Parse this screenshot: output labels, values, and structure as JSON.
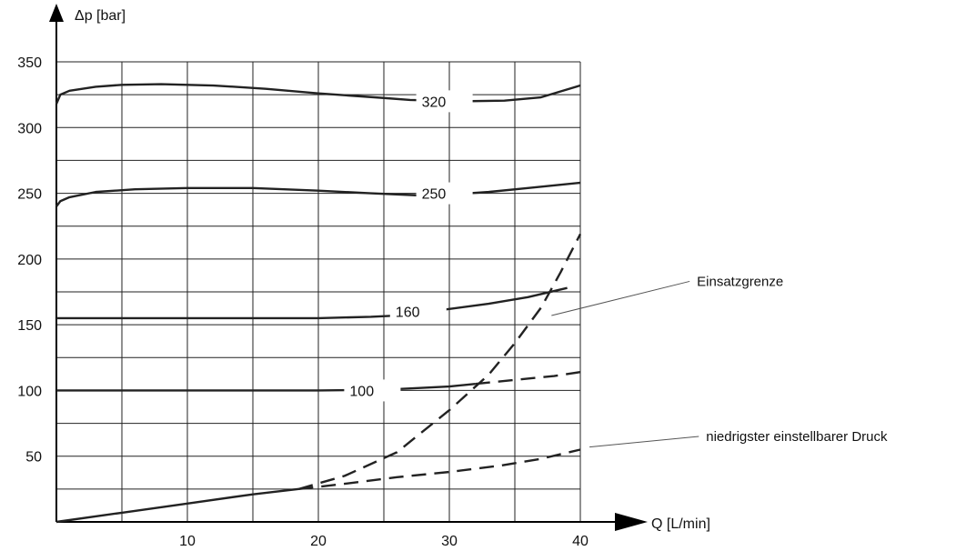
{
  "chart_data": {
    "type": "line",
    "title": "",
    "xlabel": "Q [L/min]",
    "ylabel": "Δp [bar]",
    "xlim": [
      0,
      40
    ],
    "ylim": [
      0,
      350
    ],
    "x_ticks": [
      10,
      20,
      30,
      40
    ],
    "y_ticks": [
      50,
      100,
      150,
      200,
      250,
      300,
      350
    ],
    "grid": true,
    "series": [
      {
        "name": "320",
        "style": "solid",
        "points": [
          [
            0,
            318
          ],
          [
            0.3,
            325
          ],
          [
            1,
            328
          ],
          [
            3,
            331
          ],
          [
            5,
            332.5
          ],
          [
            8,
            333
          ],
          [
            12,
            332
          ],
          [
            16,
            329.5
          ],
          [
            20,
            326
          ],
          [
            25,
            322.5
          ],
          [
            27,
            321
          ],
          [
            31,
            320
          ],
          [
            34.2,
            320.5
          ],
          [
            37,
            323
          ],
          [
            40,
            332
          ]
        ]
      },
      {
        "name": "250",
        "style": "solid",
        "points": [
          [
            0,
            240
          ],
          [
            0.3,
            244
          ],
          [
            1,
            247
          ],
          [
            3,
            251
          ],
          [
            6,
            253
          ],
          [
            10,
            254
          ],
          [
            15,
            254
          ],
          [
            20,
            252
          ],
          [
            24,
            250
          ],
          [
            27.5,
            248.5
          ],
          [
            30,
            249
          ],
          [
            33,
            251
          ],
          [
            36,
            254
          ],
          [
            40,
            258
          ]
        ]
      },
      {
        "name": "160",
        "style": "solid",
        "points": [
          [
            0,
            155
          ],
          [
            10,
            155
          ],
          [
            20,
            155
          ],
          [
            24,
            156
          ],
          [
            26,
            157
          ],
          [
            30,
            162
          ],
          [
            33,
            166
          ],
          [
            36,
            171
          ],
          [
            39,
            178
          ]
        ]
      },
      {
        "name": "100",
        "style": "solid",
        "points": [
          [
            0,
            100
          ],
          [
            10,
            100
          ],
          [
            20,
            100
          ],
          [
            24,
            100.5
          ],
          [
            26,
            101
          ],
          [
            30,
            103
          ],
          [
            32,
            105
          ]
        ]
      },
      {
        "name": "",
        "style": "dashed",
        "points": [
          [
            32,
            105
          ],
          [
            35,
            108
          ],
          [
            38,
            111
          ],
          [
            40,
            114
          ]
        ]
      },
      {
        "name": "",
        "style": "solid",
        "points": [
          [
            0,
            0
          ],
          [
            5,
            7
          ],
          [
            10,
            14
          ],
          [
            15,
            21
          ],
          [
            18.5,
            25
          ]
        ]
      },
      {
        "name": "",
        "style": "dashed",
        "points": [
          [
            18.5,
            25
          ],
          [
            22,
            29
          ],
          [
            26,
            34
          ],
          [
            30,
            38
          ],
          [
            34,
            43
          ],
          [
            37,
            48
          ],
          [
            40,
            55
          ]
        ]
      },
      {
        "name": "",
        "style": "dashed",
        "points": [
          [
            18.5,
            25
          ],
          [
            22,
            35
          ],
          [
            26,
            53
          ],
          [
            30,
            85
          ],
          [
            33,
            112
          ],
          [
            35,
            136
          ],
          [
            37,
            163
          ],
          [
            38.5,
            190
          ],
          [
            40,
            219
          ]
        ]
      }
    ],
    "curve_labels": [
      {
        "text": "320",
        "x": 29,
        "y": 320
      },
      {
        "text": "250",
        "x": 29,
        "y": 250
      },
      {
        "text": "160",
        "x": 27,
        "y": 160
      },
      {
        "text": "100",
        "x": 23.5,
        "y": 100
      }
    ],
    "annotations": [
      {
        "text": "Einsatzgrenze",
        "x": 48.9,
        "y": 183,
        "pointer_x": 37.8,
        "pointer_y": 157
      },
      {
        "text": "niedrigster einstellbarer Druck",
        "x": 49.6,
        "y": 65,
        "pointer_x": 40.7,
        "pointer_y": 57
      }
    ]
  }
}
